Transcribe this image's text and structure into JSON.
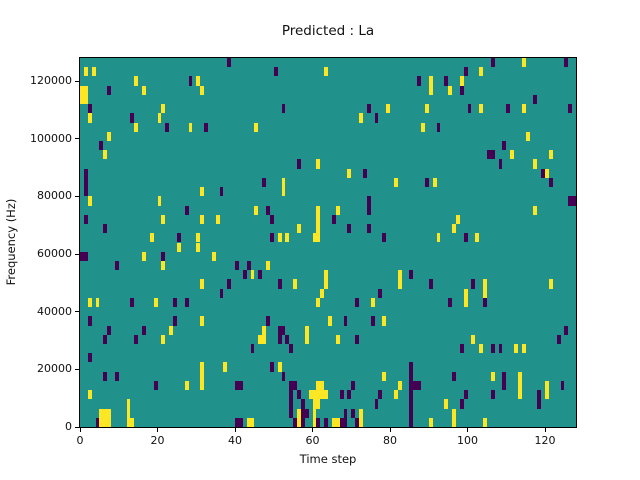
{
  "chart_data": {
    "type": "heatmap",
    "title": "Predicted : La",
    "xlabel": "Time step",
    "ylabel": "Frequency (Hz)",
    "x_ticks": [
      0,
      20,
      40,
      60,
      80,
      100,
      120
    ],
    "y_ticks": [
      0,
      20000,
      40000,
      60000,
      80000,
      100000,
      120000
    ],
    "x_range": [
      0,
      128
    ],
    "y_range": [
      0,
      128000
    ],
    "grid_cols": 128,
    "grid_rows": 40,
    "grid": false,
    "legend": "none",
    "colors": {
      "background": "#21918c",
      "high": "#fde725",
      "low": "#440154",
      "figure_background": "#ffffff",
      "axis": "#000000"
    },
    "cells": {
      "yellow": [
        [
          1,
          38
        ],
        [
          3,
          38
        ],
        [
          0,
          36
        ],
        [
          1,
          36
        ],
        [
          0,
          35
        ],
        [
          1,
          35
        ],
        [
          2,
          33
        ],
        [
          14,
          37
        ],
        [
          16,
          36
        ],
        [
          30,
          37
        ],
        [
          31,
          36
        ],
        [
          21,
          34
        ],
        [
          20,
          33
        ],
        [
          14,
          32
        ],
        [
          28,
          32
        ],
        [
          7,
          31
        ],
        [
          6,
          29
        ],
        [
          63,
          38
        ],
        [
          79,
          34
        ],
        [
          72,
          33
        ],
        [
          45,
          32
        ],
        [
          61,
          28
        ],
        [
          69,
          27
        ],
        [
          114,
          39
        ],
        [
          103,
          38
        ],
        [
          90,
          37
        ],
        [
          98,
          37
        ],
        [
          90,
          36
        ],
        [
          95,
          36
        ],
        [
          89,
          34
        ],
        [
          103,
          34
        ],
        [
          114,
          34
        ],
        [
          88,
          32
        ],
        [
          115,
          31
        ],
        [
          111,
          29
        ],
        [
          117,
          28
        ],
        [
          120,
          27
        ],
        [
          2,
          24
        ],
        [
          20,
          24
        ],
        [
          21,
          22
        ],
        [
          31,
          25
        ],
        [
          31,
          22
        ],
        [
          35,
          22
        ],
        [
          18,
          20
        ],
        [
          30,
          20
        ],
        [
          30,
          19
        ],
        [
          16,
          18
        ],
        [
          25,
          19
        ],
        [
          34,
          18
        ],
        [
          21,
          17
        ],
        [
          31,
          15
        ],
        [
          2,
          13
        ],
        [
          4,
          13
        ],
        [
          19,
          13
        ],
        [
          52,
          26
        ],
        [
          52,
          25
        ],
        [
          81,
          26
        ],
        [
          45,
          23
        ],
        [
          66,
          23
        ],
        [
          61,
          23
        ],
        [
          61,
          22
        ],
        [
          61,
          21
        ],
        [
          61,
          20
        ],
        [
          60,
          20
        ],
        [
          56,
          21
        ],
        [
          51,
          20
        ],
        [
          53,
          20
        ],
        [
          48,
          17
        ],
        [
          44,
          16
        ],
        [
          55,
          15
        ],
        [
          63,
          16
        ],
        [
          63,
          15
        ],
        [
          62,
          14
        ],
        [
          82,
          16
        ],
        [
          82,
          15
        ],
        [
          91,
          26
        ],
        [
          117,
          23
        ],
        [
          97,
          22
        ],
        [
          96,
          21
        ],
        [
          92,
          20
        ],
        [
          102,
          20
        ],
        [
          104,
          15
        ],
        [
          104,
          14
        ],
        [
          121,
          15
        ],
        [
          99,
          14
        ],
        [
          99,
          13
        ],
        [
          61,
          13
        ],
        [
          75,
          13
        ],
        [
          121,
          29
        ],
        [
          21,
          9
        ],
        [
          23,
          10
        ],
        [
          31,
          11
        ],
        [
          27,
          4
        ],
        [
          31,
          6
        ],
        [
          31,
          5
        ],
        [
          31,
          4
        ],
        [
          37,
          6
        ],
        [
          2,
          3
        ],
        [
          5,
          1
        ],
        [
          6,
          1
        ],
        [
          7,
          1
        ],
        [
          5,
          0
        ],
        [
          6,
          0
        ],
        [
          7,
          0
        ],
        [
          12,
          2
        ],
        [
          12,
          1
        ],
        [
          12,
          0
        ],
        [
          13,
          0
        ],
        [
          47,
          10
        ],
        [
          47,
          9
        ],
        [
          46,
          9
        ],
        [
          58,
          10
        ],
        [
          58,
          9
        ],
        [
          64,
          11
        ],
        [
          78,
          11
        ],
        [
          51,
          6
        ],
        [
          66,
          9
        ],
        [
          78,
          5
        ],
        [
          82,
          4
        ],
        [
          81,
          3
        ],
        [
          43,
          0
        ],
        [
          44,
          0
        ],
        [
          61,
          4
        ],
        [
          62,
          4
        ],
        [
          59,
          3
        ],
        [
          60,
          3
        ],
        [
          61,
          3
        ],
        [
          62,
          3
        ],
        [
          63,
          3
        ],
        [
          60,
          2
        ],
        [
          61,
          2
        ],
        [
          60,
          1
        ],
        [
          60,
          0
        ],
        [
          56,
          1
        ],
        [
          56,
          0
        ],
        [
          65,
          0
        ],
        [
          66,
          0
        ],
        [
          72,
          1
        ],
        [
          72,
          0
        ],
        [
          101,
          9
        ],
        [
          103,
          8
        ],
        [
          112,
          8
        ],
        [
          114,
          8
        ],
        [
          106,
          5
        ],
        [
          113,
          5
        ],
        [
          113,
          4
        ],
        [
          113,
          3
        ],
        [
          120,
          4
        ],
        [
          120,
          3
        ],
        [
          94,
          2
        ],
        [
          96,
          1
        ],
        [
          96,
          0
        ],
        [
          90,
          0
        ],
        [
          104,
          0
        ]
      ],
      "dark": [
        [
          38,
          39
        ],
        [
          7,
          36
        ],
        [
          2,
          34
        ],
        [
          28,
          37
        ],
        [
          13,
          33
        ],
        [
          22,
          32
        ],
        [
          32,
          32
        ],
        [
          5,
          30
        ],
        [
          1,
          27
        ],
        [
          1,
          26
        ],
        [
          1,
          25
        ],
        [
          50,
          38
        ],
        [
          52,
          34
        ],
        [
          74,
          34
        ],
        [
          76,
          33
        ],
        [
          56,
          28
        ],
        [
          73,
          27
        ],
        [
          47,
          26
        ],
        [
          106,
          39
        ],
        [
          125,
          39
        ],
        [
          99,
          38
        ],
        [
          87,
          37
        ],
        [
          94,
          37
        ],
        [
          98,
          36
        ],
        [
          117,
          35
        ],
        [
          100,
          34
        ],
        [
          110,
          34
        ],
        [
          126,
          34
        ],
        [
          92,
          32
        ],
        [
          109,
          30
        ],
        [
          105,
          29
        ],
        [
          106,
          29
        ],
        [
          108,
          28
        ],
        [
          119,
          27
        ],
        [
          121,
          26
        ],
        [
          126,
          24
        ],
        [
          127,
          24
        ],
        [
          1,
          22
        ],
        [
          6,
          21
        ],
        [
          0,
          18
        ],
        [
          1,
          18
        ],
        [
          9,
          17
        ],
        [
          27,
          23
        ],
        [
          36,
          25
        ],
        [
          25,
          20
        ],
        [
          21,
          18
        ],
        [
          40,
          17
        ],
        [
          42,
          16
        ],
        [
          38,
          15
        ],
        [
          36,
          14
        ],
        [
          24,
          13
        ],
        [
          13,
          13
        ],
        [
          27,
          13
        ],
        [
          48,
          23
        ],
        [
          49,
          22
        ],
        [
          49,
          20
        ],
        [
          74,
          24
        ],
        [
          74,
          23
        ],
        [
          74,
          21
        ],
        [
          65,
          22
        ],
        [
          69,
          21
        ],
        [
          78,
          20
        ],
        [
          43,
          17
        ],
        [
          46,
          16
        ],
        [
          51,
          15
        ],
        [
          77,
          14
        ],
        [
          85,
          16
        ],
        [
          89,
          26
        ],
        [
          99,
          20
        ],
        [
          90,
          15
        ],
        [
          101,
          15
        ],
        [
          104,
          13
        ],
        [
          95,
          13
        ],
        [
          2,
          11
        ],
        [
          7,
          10
        ],
        [
          6,
          9
        ],
        [
          2,
          7
        ],
        [
          16,
          10
        ],
        [
          14,
          9
        ],
        [
          24,
          11
        ],
        [
          6,
          5
        ],
        [
          9,
          5
        ],
        [
          19,
          4
        ],
        [
          40,
          4
        ],
        [
          41,
          4
        ],
        [
          40,
          0
        ],
        [
          41,
          0
        ],
        [
          4,
          0
        ],
        [
          48,
          11
        ],
        [
          44,
          8
        ],
        [
          51,
          10
        ],
        [
          51,
          9
        ],
        [
          52,
          10
        ],
        [
          53,
          9
        ],
        [
          54,
          8
        ],
        [
          49,
          6
        ],
        [
          52,
          5
        ],
        [
          71,
          13
        ],
        [
          68,
          11
        ],
        [
          75,
          11
        ],
        [
          71,
          9
        ],
        [
          70,
          4
        ],
        [
          67,
          3
        ],
        [
          69,
          3
        ],
        [
          77,
          3
        ],
        [
          76,
          2
        ],
        [
          54,
          4
        ],
        [
          55,
          4
        ],
        [
          54,
          3
        ],
        [
          56,
          3
        ],
        [
          54,
          2
        ],
        [
          57,
          2
        ],
        [
          54,
          1
        ],
        [
          57,
          1
        ],
        [
          58,
          1
        ],
        [
          55,
          0
        ],
        [
          57,
          0
        ],
        [
          61,
          0
        ],
        [
          63,
          0
        ],
        [
          67,
          0
        ],
        [
          68,
          0
        ],
        [
          68,
          1
        ],
        [
          70,
          1
        ],
        [
          71,
          0
        ],
        [
          125,
          10
        ],
        [
          123,
          9
        ],
        [
          98,
          8
        ],
        [
          106,
          8
        ],
        [
          108,
          8
        ],
        [
          96,
          5
        ],
        [
          109,
          5
        ],
        [
          109,
          4
        ],
        [
          124,
          4
        ],
        [
          118,
          3
        ],
        [
          99,
          3
        ],
        [
          106,
          3
        ],
        [
          118,
          2
        ],
        [
          98,
          2
        ],
        [
          85,
          6
        ],
        [
          85,
          5
        ],
        [
          85,
          4
        ],
        [
          86,
          4
        ],
        [
          87,
          4
        ],
        [
          85,
          3
        ],
        [
          85,
          2
        ],
        [
          85,
          1
        ],
        [
          85,
          0
        ]
      ]
    }
  }
}
